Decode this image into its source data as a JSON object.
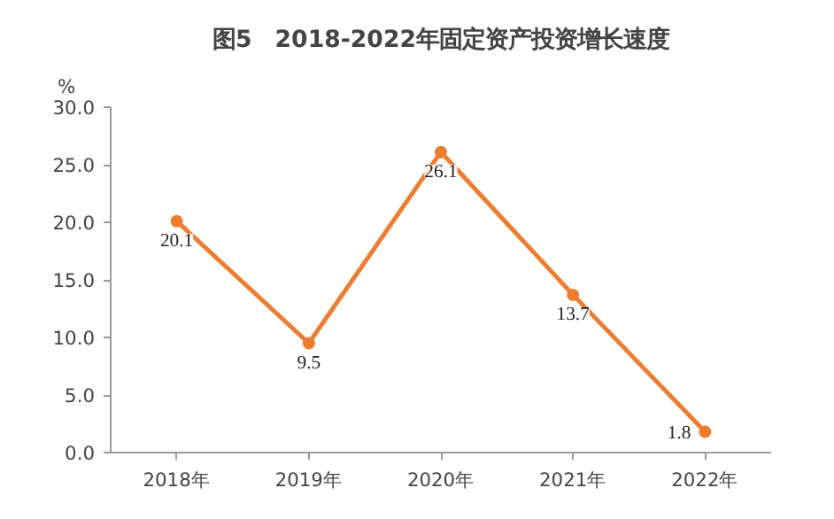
{
  "chart_data": {
    "type": "line",
    "title": "图5　2018-2022年固定资产投资增长速度",
    "ylabel": "%",
    "categories": [
      "2018年",
      "2019年",
      "2020年",
      "2021年",
      "2022年"
    ],
    "series": [
      {
        "color": "#ed7d31",
        "values": [
          20.1,
          9.5,
          26.1,
          13.7,
          1.8
        ]
      }
    ],
    "ylim": [
      0,
      30
    ],
    "yticks": [
      {
        "value": 0,
        "label": "0.0"
      },
      {
        "value": 5,
        "label": "5.0"
      },
      {
        "value": 10,
        "label": "10.0"
      },
      {
        "value": 15,
        "label": "15.0"
      },
      {
        "value": 20,
        "label": "20.0"
      },
      {
        "value": 25,
        "label": "25.0"
      },
      {
        "value": 30,
        "label": "30.0"
      }
    ],
    "grid": false,
    "marker": "circle",
    "line_style": "solid",
    "data_labels": true
  }
}
